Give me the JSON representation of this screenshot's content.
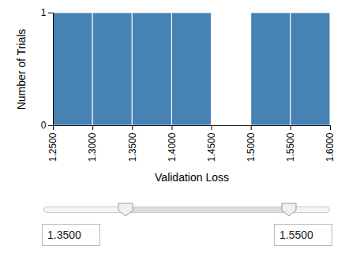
{
  "chart_data": {
    "type": "histogram",
    "bins": [
      1.25,
      1.3,
      1.35,
      1.4,
      1.45,
      1.5,
      1.55,
      1.6
    ],
    "counts": [
      1,
      1,
      1,
      1,
      0,
      1,
      1
    ],
    "color": "#4682b4",
    "xlabel": "Validation Loss",
    "ylabel": "Number of Trials",
    "xlim": [
      1.25,
      1.6
    ],
    "xticks": [
      {
        "value": 1.25,
        "label": "1.2500"
      },
      {
        "value": 1.3,
        "label": "1.3000"
      },
      {
        "value": 1.35,
        "label": "1.3500"
      },
      {
        "value": 1.4,
        "label": "1.4000"
      },
      {
        "value": 1.45,
        "label": "1.4500"
      },
      {
        "value": 1.5,
        "label": "1.5000"
      },
      {
        "value": 1.55,
        "label": "1.5500"
      },
      {
        "value": 1.6,
        "label": "1.6000"
      }
    ],
    "ylim": [
      0,
      1
    ],
    "yticks": [
      0,
      1
    ],
    "grid": false
  },
  "range_slider": {
    "low": {
      "value": 1.35,
      "label": "1.3500"
    },
    "high": {
      "value": 1.55,
      "label": "1.5500"
    }
  }
}
